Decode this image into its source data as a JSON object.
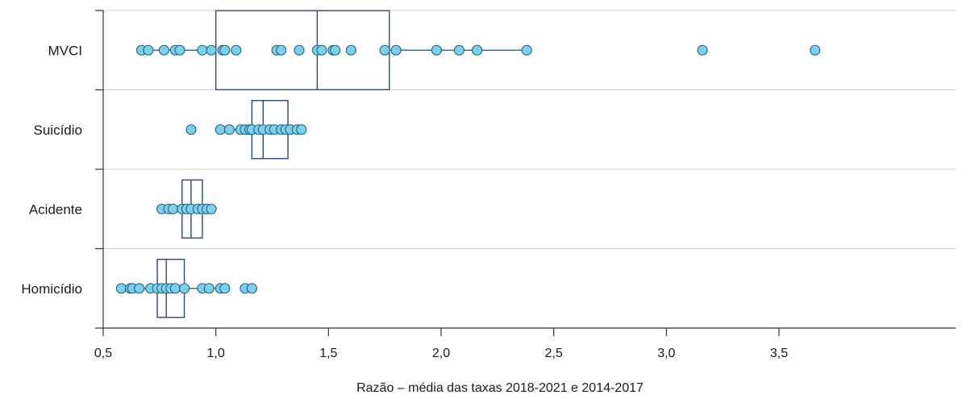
{
  "chart_data": {
    "type": "boxplot",
    "orientation": "horizontal",
    "xlabel": "Razão – média das taxas 2018-2021 e 2014-2017",
    "xlim": [
      0.5,
      3.8
    ],
    "xticks": [
      0.5,
      1.0,
      1.5,
      2.0,
      2.5,
      3.0,
      3.5
    ],
    "xtick_labels": [
      "0,5",
      "1,0",
      "1,5",
      "2,0",
      "2,5",
      "3,0",
      "3,5"
    ],
    "grid": "horizontal separators",
    "colors": {
      "point_fill": "#7fcfe9",
      "point_stroke": "#1d5f86",
      "box_stroke": "#2b4a6e",
      "axis": "#333333",
      "grid": "#cccccc"
    },
    "categories": [
      {
        "name": "MVCI",
        "box": {
          "whisker_low": 0.67,
          "q1": 1.0,
          "median": 1.45,
          "q3": 1.77,
          "whisker_high": 2.38
        },
        "points": [
          0.67,
          0.7,
          0.77,
          0.82,
          0.84,
          0.94,
          0.98,
          1.03,
          1.04,
          1.09,
          1.27,
          1.29,
          1.37,
          1.45,
          1.47,
          1.52,
          1.53,
          1.6,
          1.75,
          1.8,
          1.98,
          2.08,
          2.16,
          2.38,
          3.16,
          3.66
        ]
      },
      {
        "name": "Suicídio",
        "box": {
          "whisker_low": 1.02,
          "q1": 1.16,
          "median": 1.21,
          "q3": 1.32,
          "whisker_high": 1.38
        },
        "points": [
          0.89,
          1.02,
          1.06,
          1.11,
          1.13,
          1.15,
          1.16,
          1.19,
          1.21,
          1.24,
          1.26,
          1.29,
          1.31,
          1.33,
          1.36,
          1.38
        ]
      },
      {
        "name": "Acidente",
        "box": {
          "whisker_low": 0.76,
          "q1": 0.85,
          "median": 0.89,
          "q3": 0.94,
          "whisker_high": 0.98
        },
        "points": [
          0.76,
          0.79,
          0.81,
          0.85,
          0.87,
          0.89,
          0.92,
          0.94,
          0.96,
          0.98
        ]
      },
      {
        "name": "Homicídio",
        "box": {
          "whisker_low": 0.58,
          "q1": 0.74,
          "median": 0.78,
          "q3": 0.86,
          "whisker_high": 1.04
        },
        "points": [
          0.58,
          0.62,
          0.63,
          0.66,
          0.71,
          0.74,
          0.76,
          0.78,
          0.8,
          0.82,
          0.86,
          0.94,
          0.97,
          1.02,
          1.04,
          1.13,
          1.16
        ]
      }
    ]
  }
}
